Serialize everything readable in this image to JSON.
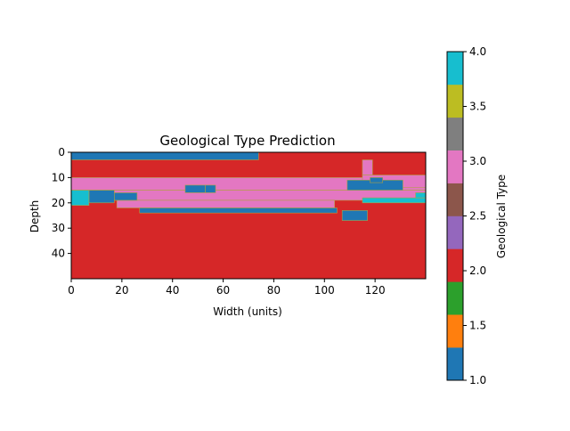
{
  "chart_data": {
    "type": "heatmap",
    "title": "Geological Type Prediction",
    "xlabel": "Width (units)",
    "ylabel": "Depth",
    "xlim": [
      0,
      140
    ],
    "ylim": [
      50,
      0
    ],
    "x_ticks": [
      0,
      20,
      40,
      60,
      80,
      100,
      120
    ],
    "y_ticks": [
      0,
      10,
      20,
      30,
      40
    ],
    "colorbar": {
      "label": "Geological Type",
      "range": [
        1.0,
        4.0
      ],
      "ticks": [
        "1.0",
        "1.5",
        "2.0",
        "2.5",
        "3.0",
        "3.5",
        "4.0"
      ],
      "palette": [
        "#1f77b4",
        "#ff7f0e",
        "#2ca02c",
        "#d62728",
        "#9467bd",
        "#8c564b",
        "#e377c2",
        "#7f7f7f",
        "#bcbd22",
        "#17becf"
      ]
    },
    "background_value": 2.0,
    "regions": [
      {
        "value": 1.0,
        "x": [
          0,
          74
        ],
        "y": [
          0,
          3
        ]
      },
      {
        "value": 3.0,
        "x": [
          0,
          140
        ],
        "y": [
          10,
          15
        ]
      },
      {
        "value": 3.0,
        "x": [
          0,
          140
        ],
        "y": [
          15,
          19
        ]
      },
      {
        "value": 3.0,
        "x": [
          18,
          104
        ],
        "y": [
          19,
          22
        ]
      },
      {
        "value": 3.0,
        "x": [
          115,
          119
        ],
        "y": [
          3,
          9
        ]
      },
      {
        "value": 3.0,
        "x": [
          115,
          140
        ],
        "y": [
          9,
          14
        ]
      },
      {
        "value": 1.0,
        "x": [
          45,
          53
        ],
        "y": [
          13,
          16
        ]
      },
      {
        "value": 1.0,
        "x": [
          53,
          57
        ],
        "y": [
          13,
          16
        ]
      },
      {
        "value": 1.0,
        "x": [
          7,
          17
        ],
        "y": [
          15,
          20
        ]
      },
      {
        "value": 1.0,
        "x": [
          17,
          26
        ],
        "y": [
          16,
          19
        ]
      },
      {
        "value": 1.0,
        "x": [
          27,
          105
        ],
        "y": [
          22,
          24
        ]
      },
      {
        "value": 1.0,
        "x": [
          107,
          117
        ],
        "y": [
          23,
          27
        ]
      },
      {
        "value": 1.0,
        "x": [
          109,
          131
        ],
        "y": [
          11,
          15
        ]
      },
      {
        "value": 1.0,
        "x": [
          118,
          123
        ],
        "y": [
          10,
          12
        ]
      },
      {
        "value": 4.0,
        "x": [
          0,
          7
        ],
        "y": [
          15,
          21
        ]
      },
      {
        "value": 4.0,
        "x": [
          115,
          140
        ],
        "y": [
          18,
          20
        ]
      },
      {
        "value": 4.0,
        "x": [
          136,
          140
        ],
        "y": [
          16,
          18
        ]
      }
    ]
  }
}
